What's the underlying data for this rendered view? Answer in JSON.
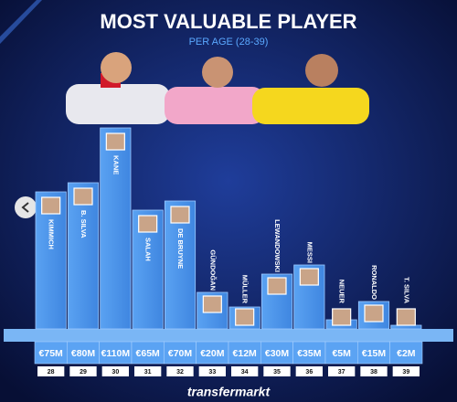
{
  "chart_data": {
    "type": "bar",
    "title": "MOST VALUABLE PLAYER",
    "subtitle": "PER AGE (28-39)",
    "categories": [
      "28",
      "29",
      "30",
      "31",
      "32",
      "33",
      "34",
      "35",
      "36",
      "37",
      "38",
      "39"
    ],
    "players": [
      "KIMMICH",
      "B. SILVA",
      "KANE",
      "SALAH",
      "DE BRUYNE",
      "GÜNDOĞAN",
      "MÜLLER",
      "LEWANDOWSKI",
      "MESSI",
      "NEUER",
      "RONALDO",
      "T. SILVA"
    ],
    "values": [
      75,
      80,
      110,
      65,
      70,
      20,
      12,
      30,
      35,
      5,
      15,
      2
    ],
    "value_labels": [
      "€75M",
      "€80M",
      "€110M",
      "€65M",
      "€70M",
      "€20M",
      "€12M",
      "€30M",
      "€35M",
      "€5M",
      "€15M",
      "€2M"
    ],
    "color": "#4f97ec",
    "source": "transfermarkt"
  }
}
